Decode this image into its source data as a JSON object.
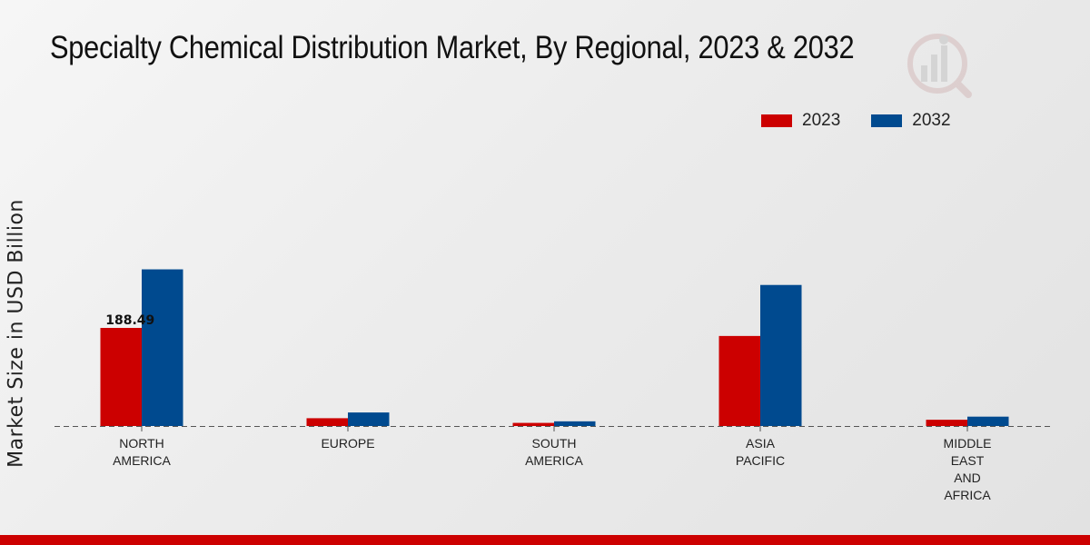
{
  "chart_data": {
    "type": "bar",
    "title": "Specialty Chemical Distribution Market, By Regional, 2023 & 2032",
    "xlabel": "",
    "ylabel": "Market Size in USD Billion",
    "categories": [
      [
        "NORTH",
        "AMERICA"
      ],
      [
        "EUROPE"
      ],
      [
        "SOUTH",
        "AMERICA"
      ],
      [
        "ASIA",
        "PACIFIC"
      ],
      [
        "MIDDLE",
        "EAST",
        "AND",
        "AFRICA"
      ]
    ],
    "series": [
      {
        "name": "2023",
        "color": "#cc0000",
        "values": [
          188.49,
          15,
          6,
          173,
          12
        ]
      },
      {
        "name": "2032",
        "color": "#004a8f",
        "values": [
          301,
          26,
          9,
          271,
          18
        ]
      }
    ],
    "data_labels": [
      {
        "series": 0,
        "category": 0,
        "text": "188.49"
      }
    ],
    "ylim": [
      0,
      400
    ],
    "grid": false,
    "legend": "top-right",
    "baseline_style": "dashed"
  },
  "colors": {
    "brand_bar": "#cc0000"
  }
}
